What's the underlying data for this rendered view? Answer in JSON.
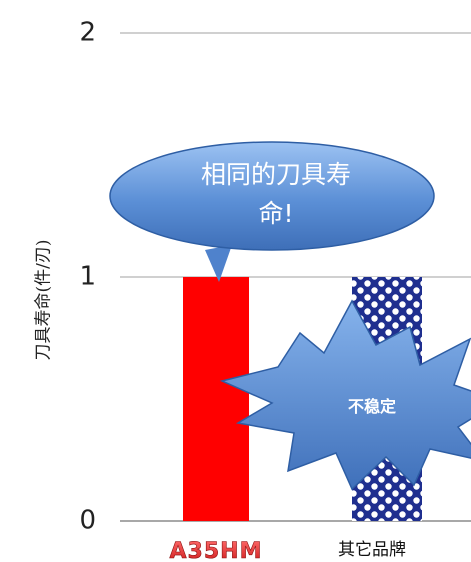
{
  "chart_data": {
    "type": "bar",
    "categories": [
      "A35HM",
      "其它品牌"
    ],
    "values": [
      1,
      1
    ],
    "ylabel": "刀具寿命(件/刃)",
    "xlabel": "",
    "title": "",
    "ylim": [
      0,
      2
    ],
    "yticks": [
      "0",
      "1",
      "2"
    ],
    "grid": true,
    "bar_colors": [
      "#ff0000",
      "#1f2f8f"
    ],
    "bar_patterns": [
      "solid",
      "dots-on-white"
    ],
    "annotations": [
      {
        "text_lines": [
          "相同的刀具寿",
          "命!"
        ],
        "shape": "ellipse-callout",
        "color": "#5b8fd6"
      },
      {
        "text": "不稳定",
        "shape": "explosion",
        "color": "#5b8fd6"
      }
    ]
  },
  "logo": {
    "text": "A35HM",
    "colors": [
      "#cc1a1a",
      "#ff6a6a"
    ]
  }
}
